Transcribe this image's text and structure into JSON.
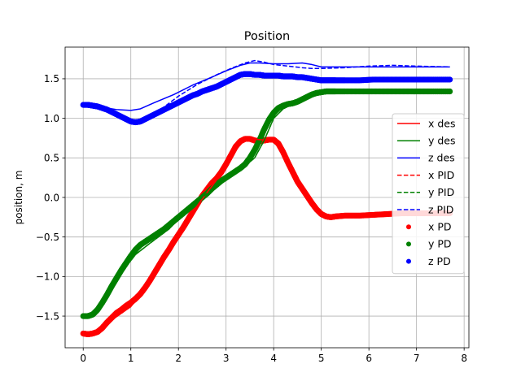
{
  "chart_data": {
    "type": "line",
    "title": "Position",
    "xlabel": "",
    "ylabel": "position, m",
    "xlim": [
      -0.38,
      8.1
    ],
    "ylim": [
      -1.9,
      1.9
    ],
    "xticks": [
      0,
      1,
      2,
      3,
      4,
      5,
      6,
      7,
      8
    ],
    "yticks": [
      -1.5,
      -1.0,
      -0.5,
      0.0,
      0.5,
      1.0,
      1.5
    ],
    "ytick_labels": [
      "−1.5",
      "−1.0",
      "−0.5",
      "0.0",
      "0.5",
      "1.0",
      "1.5"
    ],
    "grid": true,
    "legend_position": "center-right",
    "colors": {
      "x": "#ff0000",
      "y": "#008000",
      "z": "#0000ff"
    },
    "series": [
      {
        "name": "x des",
        "style": "solid",
        "color": "#ff0000",
        "x": [
          0,
          0.3,
          0.6,
          1.0,
          1.3,
          1.6,
          2.0,
          2.4,
          2.8,
          3.1,
          3.3,
          3.5,
          3.7,
          4.0,
          4.2,
          4.5,
          4.8,
          5.0,
          5.2,
          5.5,
          6.0,
          6.5,
          7.0,
          7.7
        ],
        "y": [
          -1.72,
          -1.7,
          -1.55,
          -1.38,
          -1.15,
          -0.85,
          -0.48,
          -0.1,
          0.22,
          0.5,
          0.68,
          0.75,
          0.73,
          0.72,
          0.52,
          0.2,
          -0.05,
          -0.2,
          -0.25,
          -0.24,
          -0.22,
          -0.21,
          -0.21,
          -0.21
        ]
      },
      {
        "name": "y des",
        "style": "solid",
        "color": "#008000",
        "x": [
          0,
          0.2,
          0.5,
          0.8,
          1.1,
          1.4,
          1.8,
          2.2,
          2.6,
          3.0,
          3.3,
          3.6,
          3.8,
          4.0,
          4.2,
          4.4,
          4.6,
          4.9,
          5.1,
          5.4,
          6.0,
          7.0,
          7.7
        ],
        "y": [
          -1.5,
          -1.48,
          -1.2,
          -0.95,
          -0.72,
          -0.58,
          -0.4,
          -0.15,
          0.05,
          0.25,
          0.35,
          0.5,
          0.72,
          1.0,
          1.12,
          1.18,
          1.22,
          1.3,
          1.33,
          1.34,
          1.34,
          1.34,
          1.34
        ]
      },
      {
        "name": "z des",
        "style": "solid",
        "color": "#0000ff",
        "x": [
          0,
          0.4,
          0.7,
          1.0,
          1.2,
          1.5,
          1.9,
          2.3,
          2.7,
          3.0,
          3.3,
          3.5,
          3.7,
          4.0,
          4.3,
          4.6,
          4.8,
          5.0,
          5.5,
          6.0,
          6.5,
          7.0,
          7.7
        ],
        "y": [
          1.17,
          1.14,
          1.11,
          1.1,
          1.12,
          1.2,
          1.3,
          1.42,
          1.52,
          1.6,
          1.67,
          1.7,
          1.7,
          1.69,
          1.69,
          1.7,
          1.68,
          1.65,
          1.65,
          1.65,
          1.65,
          1.65,
          1.65
        ]
      },
      {
        "name": "x PID",
        "style": "dashed",
        "color": "#ff0000",
        "x": [
          0,
          0.3,
          0.6,
          1.0,
          1.3,
          1.6,
          2.0,
          2.4,
          2.8,
          3.1,
          3.3,
          3.5,
          3.7,
          4.0,
          4.2,
          4.5,
          4.8,
          5.0,
          5.2,
          5.5,
          6.0,
          6.5,
          7.0,
          7.7
        ],
        "y": [
          -1.72,
          -1.7,
          -1.55,
          -1.38,
          -1.15,
          -0.85,
          -0.48,
          -0.1,
          0.22,
          0.5,
          0.68,
          0.75,
          0.73,
          0.72,
          0.52,
          0.2,
          -0.05,
          -0.2,
          -0.25,
          -0.24,
          -0.22,
          -0.21,
          -0.21,
          -0.21
        ]
      },
      {
        "name": "y PID",
        "style": "dashed",
        "color": "#008000",
        "x": [
          0,
          0.2,
          0.5,
          0.8,
          1.1,
          1.4,
          1.8,
          2.2,
          2.6,
          3.0,
          3.3,
          3.6,
          3.8,
          4.0,
          4.2,
          4.4,
          4.6,
          4.9,
          5.1,
          5.4,
          6.0,
          7.0,
          7.7
        ],
        "y": [
          -1.5,
          -1.48,
          -1.2,
          -0.95,
          -0.72,
          -0.58,
          -0.4,
          -0.15,
          0.05,
          0.25,
          0.35,
          0.5,
          0.72,
          1.0,
          1.12,
          1.18,
          1.22,
          1.3,
          1.33,
          1.34,
          1.34,
          1.34,
          1.34
        ]
      },
      {
        "name": "z PID",
        "style": "dashed",
        "color": "#0000ff",
        "x": [
          0,
          0.4,
          0.8,
          1.1,
          1.3,
          1.6,
          2.0,
          2.4,
          2.8,
          3.1,
          3.4,
          3.6,
          3.8,
          4.0,
          4.3,
          4.6,
          4.8,
          5.0,
          5.5,
          6.0,
          6.5,
          7.0,
          7.7
        ],
        "y": [
          1.17,
          1.13,
          1.03,
          0.96,
          0.99,
          1.1,
          1.28,
          1.43,
          1.55,
          1.63,
          1.7,
          1.73,
          1.71,
          1.68,
          1.66,
          1.64,
          1.63,
          1.63,
          1.64,
          1.66,
          1.67,
          1.66,
          1.65
        ]
      },
      {
        "name": "x PD",
        "style": "markers",
        "color": "#ff0000",
        "x": [
          0,
          0.1,
          0.2,
          0.3,
          0.4,
          0.5,
          0.6,
          0.7,
          0.8,
          0.9,
          1.0,
          1.1,
          1.2,
          1.3,
          1.4,
          1.5,
          1.6,
          1.7,
          1.8,
          1.9,
          2.0,
          2.1,
          2.2,
          2.3,
          2.4,
          2.5,
          2.6,
          2.7,
          2.8,
          2.9,
          3.0,
          3.1,
          3.2,
          3.3,
          3.4,
          3.5,
          3.6,
          3.7,
          3.8,
          3.9,
          4.0,
          4.1,
          4.2,
          4.3,
          4.4,
          4.5,
          4.6,
          4.7,
          4.8,
          4.9,
          5.0,
          5.1,
          5.2,
          5.3,
          5.5,
          5.8,
          6.1,
          6.4,
          6.7,
          7.0,
          7.3,
          7.7
        ],
        "y": [
          -1.72,
          -1.73,
          -1.72,
          -1.7,
          -1.65,
          -1.58,
          -1.52,
          -1.46,
          -1.42,
          -1.37,
          -1.33,
          -1.28,
          -1.22,
          -1.14,
          -1.05,
          -0.95,
          -0.85,
          -0.75,
          -0.66,
          -0.56,
          -0.47,
          -0.38,
          -0.28,
          -0.18,
          -0.08,
          0.02,
          0.1,
          0.18,
          0.24,
          0.32,
          0.42,
          0.53,
          0.64,
          0.71,
          0.74,
          0.74,
          0.72,
          0.71,
          0.72,
          0.73,
          0.73,
          0.68,
          0.57,
          0.44,
          0.32,
          0.2,
          0.11,
          0.02,
          -0.07,
          -0.15,
          -0.21,
          -0.24,
          -0.25,
          -0.24,
          -0.23,
          -0.23,
          -0.22,
          -0.21,
          -0.2,
          -0.2,
          -0.2,
          -0.2
        ]
      },
      {
        "name": "y PD",
        "style": "markers",
        "color": "#008000",
        "x": [
          0,
          0.1,
          0.2,
          0.3,
          0.4,
          0.5,
          0.6,
          0.7,
          0.8,
          0.9,
          1.0,
          1.1,
          1.2,
          1.3,
          1.4,
          1.5,
          1.6,
          1.7,
          1.8,
          1.9,
          2.0,
          2.1,
          2.2,
          2.3,
          2.4,
          2.5,
          2.6,
          2.7,
          2.8,
          2.9,
          3.0,
          3.1,
          3.2,
          3.3,
          3.4,
          3.5,
          3.6,
          3.7,
          3.8,
          3.9,
          4.0,
          4.1,
          4.2,
          4.3,
          4.4,
          4.5,
          4.6,
          4.7,
          4.8,
          4.9,
          5.0,
          5.1,
          5.2,
          5.3,
          5.5,
          5.8,
          6.1,
          6.4,
          6.7,
          7.0,
          7.3,
          7.7
        ],
        "y": [
          -1.5,
          -1.5,
          -1.48,
          -1.42,
          -1.33,
          -1.23,
          -1.12,
          -1.02,
          -0.92,
          -0.83,
          -0.74,
          -0.66,
          -0.6,
          -0.56,
          -0.52,
          -0.48,
          -0.44,
          -0.4,
          -0.35,
          -0.3,
          -0.25,
          -0.2,
          -0.15,
          -0.1,
          -0.05,
          0.0,
          0.05,
          0.11,
          0.16,
          0.21,
          0.25,
          0.29,
          0.33,
          0.37,
          0.42,
          0.5,
          0.6,
          0.72,
          0.86,
          0.98,
          1.07,
          1.13,
          1.16,
          1.18,
          1.19,
          1.21,
          1.24,
          1.27,
          1.3,
          1.32,
          1.33,
          1.34,
          1.34,
          1.34,
          1.34,
          1.34,
          1.34,
          1.34,
          1.34,
          1.34,
          1.34,
          1.34
        ]
      },
      {
        "name": "z PD",
        "style": "markers",
        "color": "#0000ff",
        "x": [
          0,
          0.1,
          0.2,
          0.3,
          0.4,
          0.5,
          0.6,
          0.7,
          0.8,
          0.9,
          1.0,
          1.1,
          1.2,
          1.3,
          1.4,
          1.5,
          1.6,
          1.7,
          1.8,
          1.9,
          2.0,
          2.1,
          2.2,
          2.3,
          2.4,
          2.5,
          2.6,
          2.7,
          2.8,
          2.9,
          3.0,
          3.1,
          3.2,
          3.3,
          3.4,
          3.5,
          3.6,
          3.7,
          3.8,
          3.9,
          4.0,
          4.1,
          4.2,
          4.3,
          4.4,
          4.5,
          4.6,
          4.7,
          4.8,
          4.9,
          5.0,
          5.1,
          5.2,
          5.3,
          5.5,
          5.8,
          6.1,
          6.4,
          6.7,
          7.0,
          7.3,
          7.7
        ],
        "y": [
          1.17,
          1.17,
          1.16,
          1.15,
          1.13,
          1.11,
          1.08,
          1.05,
          1.02,
          0.99,
          0.96,
          0.95,
          0.96,
          0.99,
          1.02,
          1.05,
          1.08,
          1.11,
          1.14,
          1.17,
          1.2,
          1.23,
          1.26,
          1.29,
          1.31,
          1.34,
          1.36,
          1.38,
          1.4,
          1.43,
          1.46,
          1.49,
          1.52,
          1.55,
          1.56,
          1.56,
          1.55,
          1.55,
          1.54,
          1.54,
          1.54,
          1.54,
          1.53,
          1.53,
          1.53,
          1.52,
          1.52,
          1.51,
          1.5,
          1.49,
          1.48,
          1.48,
          1.48,
          1.48,
          1.48,
          1.48,
          1.49,
          1.49,
          1.49,
          1.49,
          1.49,
          1.49
        ]
      }
    ]
  }
}
